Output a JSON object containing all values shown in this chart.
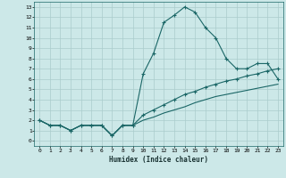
{
  "xlabel": "Humidex (Indice chaleur)",
  "bg_color": "#cce8e8",
  "grid_color": "#aacccc",
  "line_color": "#1a6666",
  "x_ticks": [
    0,
    1,
    2,
    3,
    4,
    5,
    6,
    7,
    8,
    9,
    10,
    11,
    12,
    13,
    14,
    15,
    16,
    17,
    18,
    19,
    20,
    21,
    22,
    23
  ],
  "y_ticks": [
    0,
    1,
    2,
    3,
    4,
    5,
    6,
    7,
    8,
    9,
    10,
    11,
    12,
    13
  ],
  "xlim": [
    -0.5,
    23.5
  ],
  "ylim": [
    -0.5,
    13.5
  ],
  "line1_x": [
    0,
    1,
    2,
    3,
    4,
    5,
    6,
    7,
    8,
    9,
    10,
    11,
    12,
    13,
    14,
    15,
    16,
    17,
    18,
    19,
    20,
    21,
    22,
    23
  ],
  "line1_y": [
    2.0,
    1.5,
    1.5,
    1.0,
    1.5,
    1.5,
    1.5,
    0.5,
    1.5,
    1.5,
    6.5,
    8.5,
    11.5,
    12.2,
    13.0,
    12.5,
    11.0,
    10.0,
    8.0,
    7.0,
    7.0,
    7.5,
    7.5,
    6.0
  ],
  "line2_x": [
    0,
    1,
    2,
    3,
    4,
    5,
    6,
    7,
    8,
    9,
    10,
    11,
    12,
    13,
    14,
    15,
    16,
    17,
    18,
    19,
    20,
    21,
    22,
    23
  ],
  "line2_y": [
    2.0,
    1.5,
    1.5,
    1.0,
    1.5,
    1.5,
    1.5,
    0.5,
    1.5,
    1.5,
    2.5,
    3.0,
    3.5,
    4.0,
    4.5,
    4.8,
    5.2,
    5.5,
    5.8,
    6.0,
    6.3,
    6.5,
    6.8,
    7.0
  ],
  "line3_x": [
    0,
    1,
    2,
    3,
    4,
    5,
    6,
    7,
    8,
    9,
    10,
    11,
    12,
    13,
    14,
    15,
    16,
    17,
    18,
    19,
    20,
    21,
    22,
    23
  ],
  "line3_y": [
    2.0,
    1.5,
    1.5,
    1.0,
    1.5,
    1.5,
    1.5,
    0.5,
    1.5,
    1.5,
    2.0,
    2.3,
    2.7,
    3.0,
    3.3,
    3.7,
    4.0,
    4.3,
    4.5,
    4.7,
    4.9,
    5.1,
    5.3,
    5.5
  ],
  "xlabel_fontsize": 5.5,
  "tick_fontsize": 4.5
}
